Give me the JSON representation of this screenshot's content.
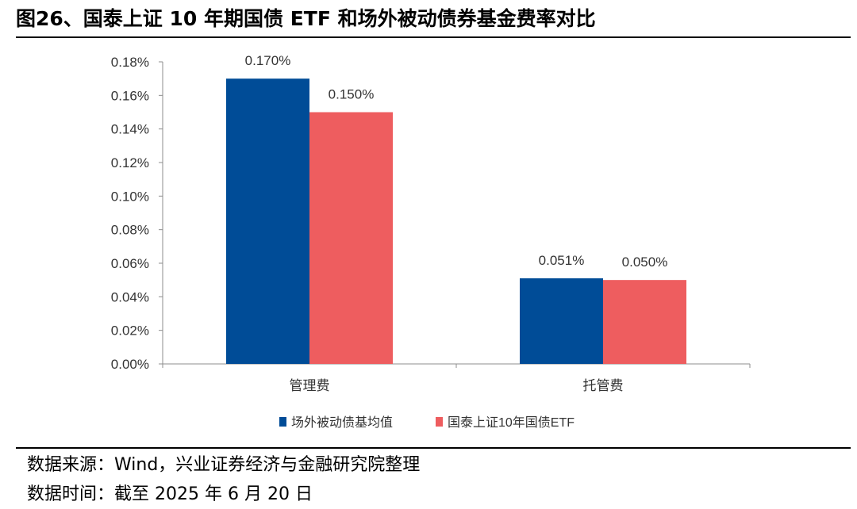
{
  "title": "图26、国泰上证 10 年期国债 ETF 和场外被动债券基金费率对比",
  "chart_data": {
    "type": "bar",
    "categories": [
      "管理费",
      "托管费"
    ],
    "series": [
      {
        "name": "场外被动债基均值",
        "values": [
          0.17,
          0.051
        ],
        "labels": [
          "0.170%",
          "0.051%"
        ],
        "color": "#004c97"
      },
      {
        "name": "国泰上证10年国债ETF",
        "values": [
          0.15,
          0.05
        ],
        "labels": [
          "0.150%",
          "0.050%"
        ],
        "color": "#ee5d5f"
      }
    ],
    "yticks": [
      "0.00%",
      "0.02%",
      "0.04%",
      "0.06%",
      "0.08%",
      "0.10%",
      "0.12%",
      "0.14%",
      "0.16%",
      "0.18%"
    ],
    "ylim": [
      0,
      0.18
    ],
    "grid": false,
    "legend_position": "bottom"
  },
  "footer": {
    "source": "数据来源：Wind，兴业证券经济与金融研究院整理",
    "date": "数据时间：截至 2025 年 6 月 20 日"
  }
}
